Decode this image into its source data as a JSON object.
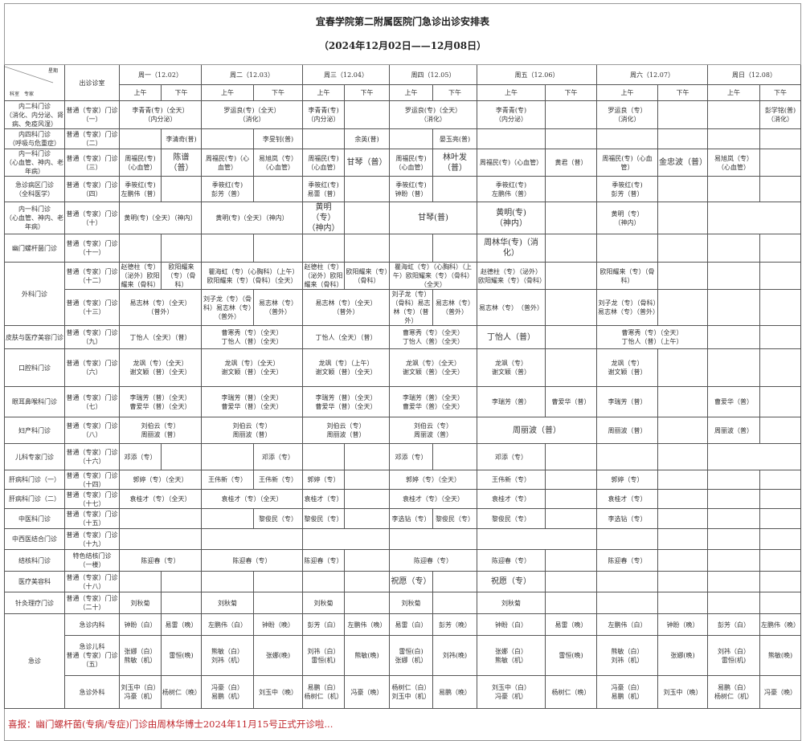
{
  "title": "宜春学院第二附属医院门急诊出诊安排表",
  "subtitle": "（2024年12月02日——12月08日）",
  "corner": {
    "top": "星期",
    "bottom": "科室　专家"
  },
  "room_header": "出诊诊室",
  "days": [
    "周一（12.02）",
    "周二（12.03）",
    "周三（12.04）",
    "周四（12.05）",
    "周五（12.06）",
    "周六（12.07）",
    "周日（12.08）"
  ],
  "am": "上午",
  "pm": "下午",
  "rows": [
    {
      "dept": "内二科门诊\n（消化、内分泌、肾病、免疫风湿）",
      "room": "普通（专家）门诊\n（一）",
      "cells": [
        {
          "t": "李青青(专)（全天）\n（内分泌）",
          "c": 2
        },
        {
          "t": "罗运良(专)（全天）\n（消化）",
          "c": 2
        },
        {
          "t": "李青青(专)\n（内分泌）"
        },
        {
          "t": ""
        },
        {
          "t": "罗运良(专)（全天）\n（消化）",
          "c": 2
        },
        {
          "t": "李青青(专)\n（内分泌）"
        },
        {
          "t": ""
        },
        {
          "t": "罗运良（专）\n（消化）"
        },
        {
          "t": ""
        },
        {
          "t": ""
        },
        {
          "t": "彭学铭(普)\n（消化）"
        }
      ]
    },
    {
      "dept": "内四科门诊\n（呼吸与危重症）",
      "room": "普通（专家）门诊\n（二）",
      "cells": [
        {
          "t": ""
        },
        {
          "t": "李清奇(普)"
        },
        {
          "t": ""
        },
        {
          "t": "李旻钊(普)"
        },
        {
          "t": ""
        },
        {
          "t": "余英(普)"
        },
        {
          "t": ""
        },
        {
          "t": "晏玉亮(普)"
        },
        {
          "t": ""
        },
        {
          "t": ""
        },
        {
          "t": ""
        },
        {
          "t": ""
        },
        {
          "t": ""
        },
        {
          "t": ""
        }
      ]
    },
    {
      "dept": "内一科门诊\n（心血管、神内、老年病）",
      "room": "普通（专家）门诊\n（三）",
      "cells": [
        {
          "t": "周福民(专)\n（心血管）"
        },
        {
          "t": "陈谱\n（普）",
          "big": true
        },
        {
          "t": "周福民(专)（心血管）"
        },
        {
          "t": "易旭岚（专）\n（心血管）"
        },
        {
          "t": "周福民(专)\n（心血管）"
        },
        {
          "t": "甘琴（普）",
          "big": true
        },
        {
          "t": "周福民(专)\n（心血管）"
        },
        {
          "t": "林叶发\n（普）",
          "big": true
        },
        {
          "t": "周福民(专)（心血管）"
        },
        {
          "t": "黄君（普）"
        },
        {
          "t": "周福民(专)（心血管）"
        },
        {
          "t": "金忠波（普）",
          "big": true
        },
        {
          "t": "易旭岚（专）\n（心血管）"
        },
        {
          "t": ""
        }
      ]
    },
    {
      "dept": "急诊病区门诊\n（全科医学）",
      "room": "普通（专家）门诊\n（四）",
      "cells": [
        {
          "t": "季筱红(专)\n左鹏伟（普）"
        },
        {
          "t": ""
        },
        {
          "t": "季筱红(专)\n彭芳（普）"
        },
        {
          "t": ""
        },
        {
          "t": "季筱红(专)\n易蕾（普）"
        },
        {
          "t": ""
        },
        {
          "t": "季筱红(专)\n钟盼（普）"
        },
        {
          "t": ""
        },
        {
          "t": "季筱红(专)\n左鹏伟（普）"
        },
        {
          "t": ""
        },
        {
          "t": "季筱红(专)\n彭芳（普）"
        },
        {
          "t": ""
        },
        {
          "t": ""
        },
        {
          "t": ""
        }
      ]
    },
    {
      "dept": "内一科门诊\n（心血管、神内、老年病）",
      "room": "普通（专家）门诊\n（十）",
      "cells": [
        {
          "t": "黄明(专)（全天）（神内）",
          "c": 2
        },
        {
          "t": "黄明(专)（全天）（神内）",
          "c": 2
        },
        {
          "t": "黄明（专）\n（神内）",
          "big": true
        },
        {
          "t": ""
        },
        {
          "t": "甘琴(普)",
          "c": 2,
          "big": true
        },
        {
          "t": "黄明(专)\n（神内）",
          "big": true
        },
        {
          "t": ""
        },
        {
          "t": "黄明（专）\n（神内）"
        },
        {
          "t": ""
        },
        {
          "t": "",
          "c": 2
        }
      ]
    },
    {
      "dept": "幽门螺杆菌门诊",
      "room": "普通（专家）门诊\n（十一）",
      "cells": [
        {
          "t": ""
        },
        {
          "t": ""
        },
        {
          "t": ""
        },
        {
          "t": ""
        },
        {
          "t": ""
        },
        {
          "t": ""
        },
        {
          "t": ""
        },
        {
          "t": ""
        },
        {
          "t": "周林华(专)（消化）",
          "big": true
        },
        {
          "t": ""
        },
        {
          "t": ""
        },
        {
          "t": ""
        },
        {
          "t": ""
        },
        {
          "t": ""
        }
      ]
    },
    {
      "dept": "外科门诊",
      "rowspan": 2,
      "room": "普通（专家）门诊\n（十二）",
      "cells": [
        {
          "t": "赵德柱（专）（泌外）欧阳耀来（骨科）"
        },
        {
          "t": "欧阳耀来（专）（骨科）"
        },
        {
          "t": "瞿海虹（专）（心胸科）（上午）　欧阳耀来（专）（骨科）（全天）",
          "c": 2
        },
        {
          "t": "赵德柱（专）（泌外）欧阳耀来（骨科）"
        },
        {
          "t": "欧阳耀来（专）（骨科）"
        },
        {
          "t": "瞿海虹（专）（心胸科）（上午）欧阳耀来（专）（骨科）（全天）",
          "c": 2
        },
        {
          "t": "赵德柱（专）（泌外）欧阳耀来（专）（骨科）"
        },
        {
          "t": ""
        },
        {
          "t": "欧阳耀来（专）（骨科）"
        },
        {
          "t": ""
        },
        {
          "t": ""
        },
        {
          "t": ""
        }
      ]
    },
    {
      "room": "普通（专家）门诊\n（十三）",
      "cells": [
        {
          "t": "易志林（专）（全天）\n（普外）",
          "c": 2
        },
        {
          "t": "刘子龙（专）（骨科）易志林（专）（普外）"
        },
        {
          "t": "易志林（专）\n（普外）"
        },
        {
          "t": "易志林（专）（全天）\n（普外）",
          "c": 2
        },
        {
          "t": "刘子龙（专）（骨科）易志林（专）（普外）"
        },
        {
          "t": "易志林（专）\n（普外）"
        },
        {
          "t": "易志林（专）　（普外）"
        },
        {
          "t": ""
        },
        {
          "t": "刘子龙（专）（骨科）易志林（专）（普外）"
        },
        {
          "t": ""
        },
        {
          "t": ""
        },
        {
          "t": ""
        }
      ]
    },
    {
      "dept": "皮肤与医疗美容门诊",
      "room": "普通（专家）门诊\n（九）",
      "cells": [
        {
          "t": "丁怡人（全天）（普）",
          "c": 2
        },
        {
          "t": "曹寒秀（专）（全天）\n丁怡人（普）（全天）",
          "c": 2
        },
        {
          "t": "丁怡人（全天）（普）",
          "c": 2
        },
        {
          "t": "曹寒秀（专）（全天）\n丁怡人（普）（全天）",
          "c": 2
        },
        {
          "t": "丁怡人（普）",
          "big": true
        },
        {
          "t": ""
        },
        {
          "t": "曹寒秀（专）（全天）\n丁怡人（普）（上午）",
          "c": 2
        },
        {
          "t": ""
        },
        {
          "t": ""
        }
      ]
    },
    {
      "dept": "口腔科门诊",
      "room": "普通（专家）门诊\n（六）",
      "cells": [
        {
          "t": "龙飒（专）（全天）\n谢文颖（普）（全天）",
          "c": 2
        },
        {
          "t": "龙飒（专）（全天）\n谢文颖（普）（全天）",
          "c": 2
        },
        {
          "t": "龙飒（专）（上午）\n谢文颖（普）（全天）",
          "c": 2
        },
        {
          "t": "龙飒（专）（全天）\n谢文颖（普）（全天）",
          "c": 2
        },
        {
          "t": "龙飒（专）\n谢文颖（普）"
        },
        {
          "t": ""
        },
        {
          "t": "龙飒（专）\n谢文颖（普）"
        },
        {
          "t": ""
        },
        {
          "t": ""
        },
        {
          "t": ""
        }
      ]
    },
    {
      "dept": "眼耳鼻喉科门诊",
      "room": "普通（专家）门诊\n（七）",
      "cells": [
        {
          "t": "李瑞芳（普）（全天）\n曹爱华（普）（全天）",
          "c": 2
        },
        {
          "t": "李瑞芳（普）（全天）\n曹爱华（普）（全天）",
          "c": 2
        },
        {
          "t": "李瑞芳（普）（全天）\n曹爱华（普）（全天）",
          "c": 2
        },
        {
          "t": "李瑞芳（普）（全天）\n曹爱华（普）（全天）",
          "c": 2
        },
        {
          "t": "李瑞芳（普）"
        },
        {
          "t": "曹爱华（普）"
        },
        {
          "t": "李瑞芳（普）"
        },
        {
          "t": ""
        },
        {
          "t": "曹爱华（普）"
        },
        {
          "t": ""
        }
      ]
    },
    {
      "dept": "妇产科门诊",
      "room": "普通（专家）门诊\n（八）",
      "cells": [
        {
          "t": "刘伯云（专）\n周丽波（普）",
          "c": 2
        },
        {
          "t": "刘伯云（专）\n周丽波（普）",
          "c": 2
        },
        {
          "t": "刘伯云（专）\n周丽波（普）",
          "c": 2
        },
        {
          "t": "刘伯云（专）\n周丽波（普）",
          "c": 2
        },
        {
          "t": "周丽波（普）",
          "c": 2,
          "big": true
        },
        {
          "t": "周丽波（普）"
        },
        {
          "t": ""
        },
        {
          "t": "周丽波（普）"
        },
        {
          "t": ""
        }
      ]
    },
    {
      "dept": "儿科专家门诊",
      "room": "普通（专家）门诊\n（十六）",
      "cells": [
        {
          "t": "邓添（专）"
        },
        {
          "t": ""
        },
        {
          "t": ""
        },
        {
          "t": "邓添（专）"
        },
        {
          "t": ""
        },
        {
          "t": ""
        },
        {
          "t": "邓添（专）"
        },
        {
          "t": ""
        },
        {
          "t": "邓添（专）"
        },
        {
          "t": ""
        },
        {
          "t": ""
        },
        {
          "t": ""
        },
        {
          "t": "",
          "c": 2
        }
      ]
    },
    {
      "dept": "肝病科门诊（一）",
      "room": "普通（专家）门诊\n（十四）",
      "cells": [
        {
          "t": "郭婷（专）（全天）",
          "c": 2
        },
        {
          "t": "王伟新（专）"
        },
        {
          "t": "王伟新（专）"
        },
        {
          "t": "郭婷（专）"
        },
        {
          "t": ""
        },
        {
          "t": "郭婷（专）（全天）",
          "c": 2
        },
        {
          "t": "王伟新（专）"
        },
        {
          "t": ""
        },
        {
          "t": "郭婷（专）"
        },
        {
          "t": ""
        },
        {
          "t": ""
        },
        {
          "t": ""
        }
      ]
    },
    {
      "dept": "肝病科门诊（二）",
      "room": "普通（专家）门诊\n（十七）",
      "cells": [
        {
          "t": "袁桂才（专）（全天）",
          "c": 2
        },
        {
          "t": "袁桂才（专）（全天）",
          "c": 2
        },
        {
          "t": "袁桂才（专）"
        },
        {
          "t": ""
        },
        {
          "t": "袁桂才（专）（全天）",
          "c": 2
        },
        {
          "t": "袁桂才（专）"
        },
        {
          "t": ""
        },
        {
          "t": "袁桂才（专）"
        },
        {
          "t": ""
        },
        {
          "t": ""
        },
        {
          "t": ""
        }
      ]
    },
    {
      "dept": "中医科门诊",
      "room": "普通（专家）门诊\n（十五）",
      "cells": [
        {
          "t": "",
          "c": 2
        },
        {
          "t": ""
        },
        {
          "t": "黎俊民（专）"
        },
        {
          "t": "黎俊民（专）"
        },
        {
          "t": ""
        },
        {
          "t": "李选钻（专）"
        },
        {
          "t": "黎俊民（专）"
        },
        {
          "t": "黎俊民（专）"
        },
        {
          "t": ""
        },
        {
          "t": "李选钻（专）"
        },
        {
          "t": ""
        },
        {
          "t": ""
        },
        {
          "t": ""
        }
      ]
    },
    {
      "dept": "中西医结合门诊",
      "room": "普通（专家）门诊\n（十九）",
      "cells": [
        {
          "t": "",
          "c": 2
        },
        {
          "t": "",
          "c": 2
        },
        {
          "t": "",
          "c": 2
        },
        {
          "t": "",
          "c": 2
        },
        {
          "t": "",
          "c": 2
        },
        {
          "t": ""
        },
        {
          "t": ""
        },
        {
          "t": ""
        },
        {
          "t": ""
        }
      ]
    },
    {
      "dept": "结核科门诊",
      "room": "特色结核门诊\n（一楼）",
      "cells": [
        {
          "t": "陈迎春（专）",
          "c": 2
        },
        {
          "t": "陈迎春（专）",
          "c": 2
        },
        {
          "t": "陈迎春（专）"
        },
        {
          "t": ""
        },
        {
          "t": "陈迎春（专）",
          "c": 2
        },
        {
          "t": "陈迎春（专）"
        },
        {
          "t": ""
        },
        {
          "t": "陈迎春（专）"
        },
        {
          "t": ""
        },
        {
          "t": ""
        },
        {
          "t": ""
        }
      ]
    },
    {
      "dept": "医疗美容科",
      "room": "普通（专家）门诊\n（十八）",
      "cells": [
        {
          "t": ""
        },
        {
          "t": ""
        },
        {
          "t": ""
        },
        {
          "t": ""
        },
        {
          "t": ""
        },
        {
          "t": ""
        },
        {
          "t": "祝愿（专）",
          "big": true
        },
        {
          "t": ""
        },
        {
          "t": "祝愿（专）",
          "big": true
        },
        {
          "t": ""
        },
        {
          "t": ""
        },
        {
          "t": ""
        },
        {
          "t": ""
        },
        {
          "t": ""
        }
      ]
    },
    {
      "dept": "针灸理疗门诊",
      "room": "普通（专家）门诊\n（二十）",
      "cells": [
        {
          "t": "刘秋菊"
        },
        {
          "t": ""
        },
        {
          "t": "刘秋菊"
        },
        {
          "t": ""
        },
        {
          "t": "刘秋菊"
        },
        {
          "t": ""
        },
        {
          "t": "刘秋菊"
        },
        {
          "t": ""
        },
        {
          "t": "刘秋菊"
        },
        {
          "t": ""
        },
        {
          "t": ""
        },
        {
          "t": ""
        },
        {
          "t": ""
        },
        {
          "t": ""
        }
      ]
    },
    {
      "dept": "急诊",
      "rowspan": 3,
      "room": "急诊内科",
      "cells": [
        {
          "t": "钟盼（白）"
        },
        {
          "t": "易雷（晚）"
        },
        {
          "t": "左鹏伟（白）"
        },
        {
          "t": "钟盼（晚）"
        },
        {
          "t": "彭芳（白）"
        },
        {
          "t": "左鹏伟（晚）"
        },
        {
          "t": "易雷（白）"
        },
        {
          "t": "彭芳（晚）"
        },
        {
          "t": "钟盼（白）"
        },
        {
          "t": "易雷（晚）"
        },
        {
          "t": "左鹏伟（白）"
        },
        {
          "t": "钟盼（晚）"
        },
        {
          "t": "彭芳（白）"
        },
        {
          "t": "左鹏伟（晚）"
        }
      ]
    },
    {
      "room": "急诊儿科\n普通（专家）门诊\n（五）",
      "cells": [
        {
          "t": "张娜（白）\n熊敏（机）"
        },
        {
          "t": "雷恒(晚)"
        },
        {
          "t": "熊敏（白）\n刘祎（机）"
        },
        {
          "t": "张娜(晚)"
        },
        {
          "t": "刘祎（白）\n雷恒(机)"
        },
        {
          "t": "熊敏(晚)"
        },
        {
          "t": "雷恒(白)\n张娜（机）"
        },
        {
          "t": "刘祎(晚)"
        },
        {
          "t": "张娜（白）\n熊敏（机）"
        },
        {
          "t": "雷恒(晚)"
        },
        {
          "t": "熊敏（白）\n刘祎（机）"
        },
        {
          "t": "张娜(晚)"
        },
        {
          "t": "刘祎（白）\n雷恒(机)"
        },
        {
          "t": "熊敏(晚)"
        }
      ]
    },
    {
      "room": "急诊外科",
      "cells": [
        {
          "t": "刘玉中（白）\n冯豪（机）"
        },
        {
          "t": "杨树仁（晚）"
        },
        {
          "t": "冯豪（白）\n易鹏（机）"
        },
        {
          "t": "刘玉中（晚）"
        },
        {
          "t": "易鹏（白）\n杨树仁（机）"
        },
        {
          "t": "冯豪（晚）"
        },
        {
          "t": "杨树仁（白）\n刘玉中（机）"
        },
        {
          "t": "易鹏（晚）"
        },
        {
          "t": "刘玉中（白）\n冯豪（机）"
        },
        {
          "t": "杨树仁（晚）"
        },
        {
          "t": "冯豪（白）\n易鹏（机）"
        },
        {
          "t": "刘玉中（晚）"
        },
        {
          "t": "易鹏（白）\n杨树仁（机）"
        },
        {
          "t": "冯豪（晚）"
        }
      ]
    }
  ],
  "footer": "喜报：幽门螺杆菌(专病/专症)门诊由周林华博士2024年11月15号正式开诊啦...",
  "colors": {
    "footer_text": "#c0272d",
    "border": "#555555"
  }
}
